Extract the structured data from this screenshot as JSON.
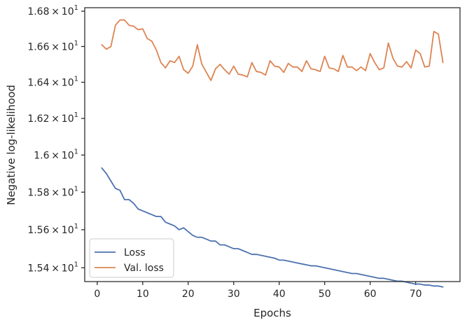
{
  "chart_data": {
    "type": "line",
    "title": "",
    "xlabel": "Epochs",
    "ylabel": "Negative log-likelihood",
    "xlim": [
      -2.75,
      79.75
    ],
    "ylim": [
      15.328,
      16.82
    ],
    "y_scale": "log",
    "grid": false,
    "legend_position": "lower-left",
    "x_ticks": [
      {
        "value": 0,
        "label": "0"
      },
      {
        "value": 10,
        "label": "10"
      },
      {
        "value": 20,
        "label": "20"
      },
      {
        "value": 30,
        "label": "30"
      },
      {
        "value": 40,
        "label": "40"
      },
      {
        "value": 50,
        "label": "50"
      },
      {
        "value": 60,
        "label": "60"
      },
      {
        "value": 70,
        "label": "70"
      }
    ],
    "y_ticks": [
      {
        "value": 15.4,
        "mantissa": "1.54",
        "base": "10",
        "exp": "1"
      },
      {
        "value": 15.6,
        "mantissa": "1.56",
        "base": "10",
        "exp": "1"
      },
      {
        "value": 15.8,
        "mantissa": "1.58",
        "base": "10",
        "exp": "1"
      },
      {
        "value": 16.0,
        "mantissa": "1.6",
        "base": "10",
        "exp": "1"
      },
      {
        "value": 16.2,
        "mantissa": "1.62",
        "base": "10",
        "exp": "1"
      },
      {
        "value": 16.4,
        "mantissa": "1.64",
        "base": "10",
        "exp": "1"
      },
      {
        "value": 16.6,
        "mantissa": "1.66",
        "base": "10",
        "exp": "1"
      },
      {
        "value": 16.8,
        "mantissa": "1.68",
        "base": "10",
        "exp": "1"
      }
    ],
    "x": [
      1,
      2,
      3,
      4,
      5,
      6,
      7,
      8,
      9,
      10,
      11,
      12,
      13,
      14,
      15,
      16,
      17,
      18,
      19,
      20,
      21,
      22,
      23,
      24,
      25,
      26,
      27,
      28,
      29,
      30,
      31,
      32,
      33,
      34,
      35,
      36,
      37,
      38,
      39,
      40,
      41,
      42,
      43,
      44,
      45,
      46,
      47,
      48,
      49,
      50,
      51,
      52,
      53,
      54,
      55,
      56,
      57,
      58,
      59,
      60,
      61,
      62,
      63,
      64,
      65,
      66,
      67,
      68,
      69,
      70,
      71,
      72,
      73,
      74,
      75,
      76
    ],
    "series": [
      {
        "name": "Loss",
        "color": "#4c72b0",
        "values": [
          15.93,
          15.9,
          15.86,
          15.82,
          15.81,
          15.76,
          15.76,
          15.74,
          15.71,
          15.7,
          15.69,
          15.68,
          15.67,
          15.67,
          15.64,
          15.63,
          15.62,
          15.6,
          15.61,
          15.59,
          15.57,
          15.56,
          15.56,
          15.55,
          15.54,
          15.54,
          15.52,
          15.52,
          15.51,
          15.5,
          15.5,
          15.49,
          15.48,
          15.47,
          15.47,
          15.465,
          15.46,
          15.455,
          15.45,
          15.44,
          15.44,
          15.435,
          15.43,
          15.425,
          15.42,
          15.415,
          15.41,
          15.41,
          15.405,
          15.4,
          15.395,
          15.39,
          15.385,
          15.38,
          15.375,
          15.37,
          15.37,
          15.365,
          15.36,
          15.355,
          15.35,
          15.345,
          15.345,
          15.34,
          15.335,
          15.33,
          15.33,
          15.325,
          15.32,
          15.315,
          15.315,
          15.31,
          15.31,
          15.305,
          15.305,
          15.3
        ]
      },
      {
        "name": "Val. loss",
        "color": "#dd8452",
        "values": [
          16.61,
          16.585,
          16.6,
          16.72,
          16.75,
          16.75,
          16.72,
          16.715,
          16.695,
          16.7,
          16.645,
          16.63,
          16.58,
          16.51,
          16.48,
          16.52,
          16.51,
          16.545,
          16.47,
          16.45,
          16.49,
          16.61,
          16.5,
          16.455,
          16.41,
          16.475,
          16.5,
          16.47,
          16.445,
          16.49,
          16.445,
          16.44,
          16.43,
          16.51,
          16.46,
          16.455,
          16.44,
          16.52,
          16.49,
          16.485,
          16.455,
          16.505,
          16.485,
          16.485,
          16.46,
          16.52,
          16.475,
          16.47,
          16.46,
          16.545,
          16.48,
          16.475,
          16.46,
          16.55,
          16.485,
          16.485,
          16.465,
          16.485,
          16.465,
          16.56,
          16.51,
          16.47,
          16.48,
          16.62,
          16.535,
          16.49,
          16.485,
          16.515,
          16.48,
          16.58,
          16.56,
          16.485,
          16.49,
          16.685,
          16.67,
          16.51
        ]
      }
    ]
  }
}
